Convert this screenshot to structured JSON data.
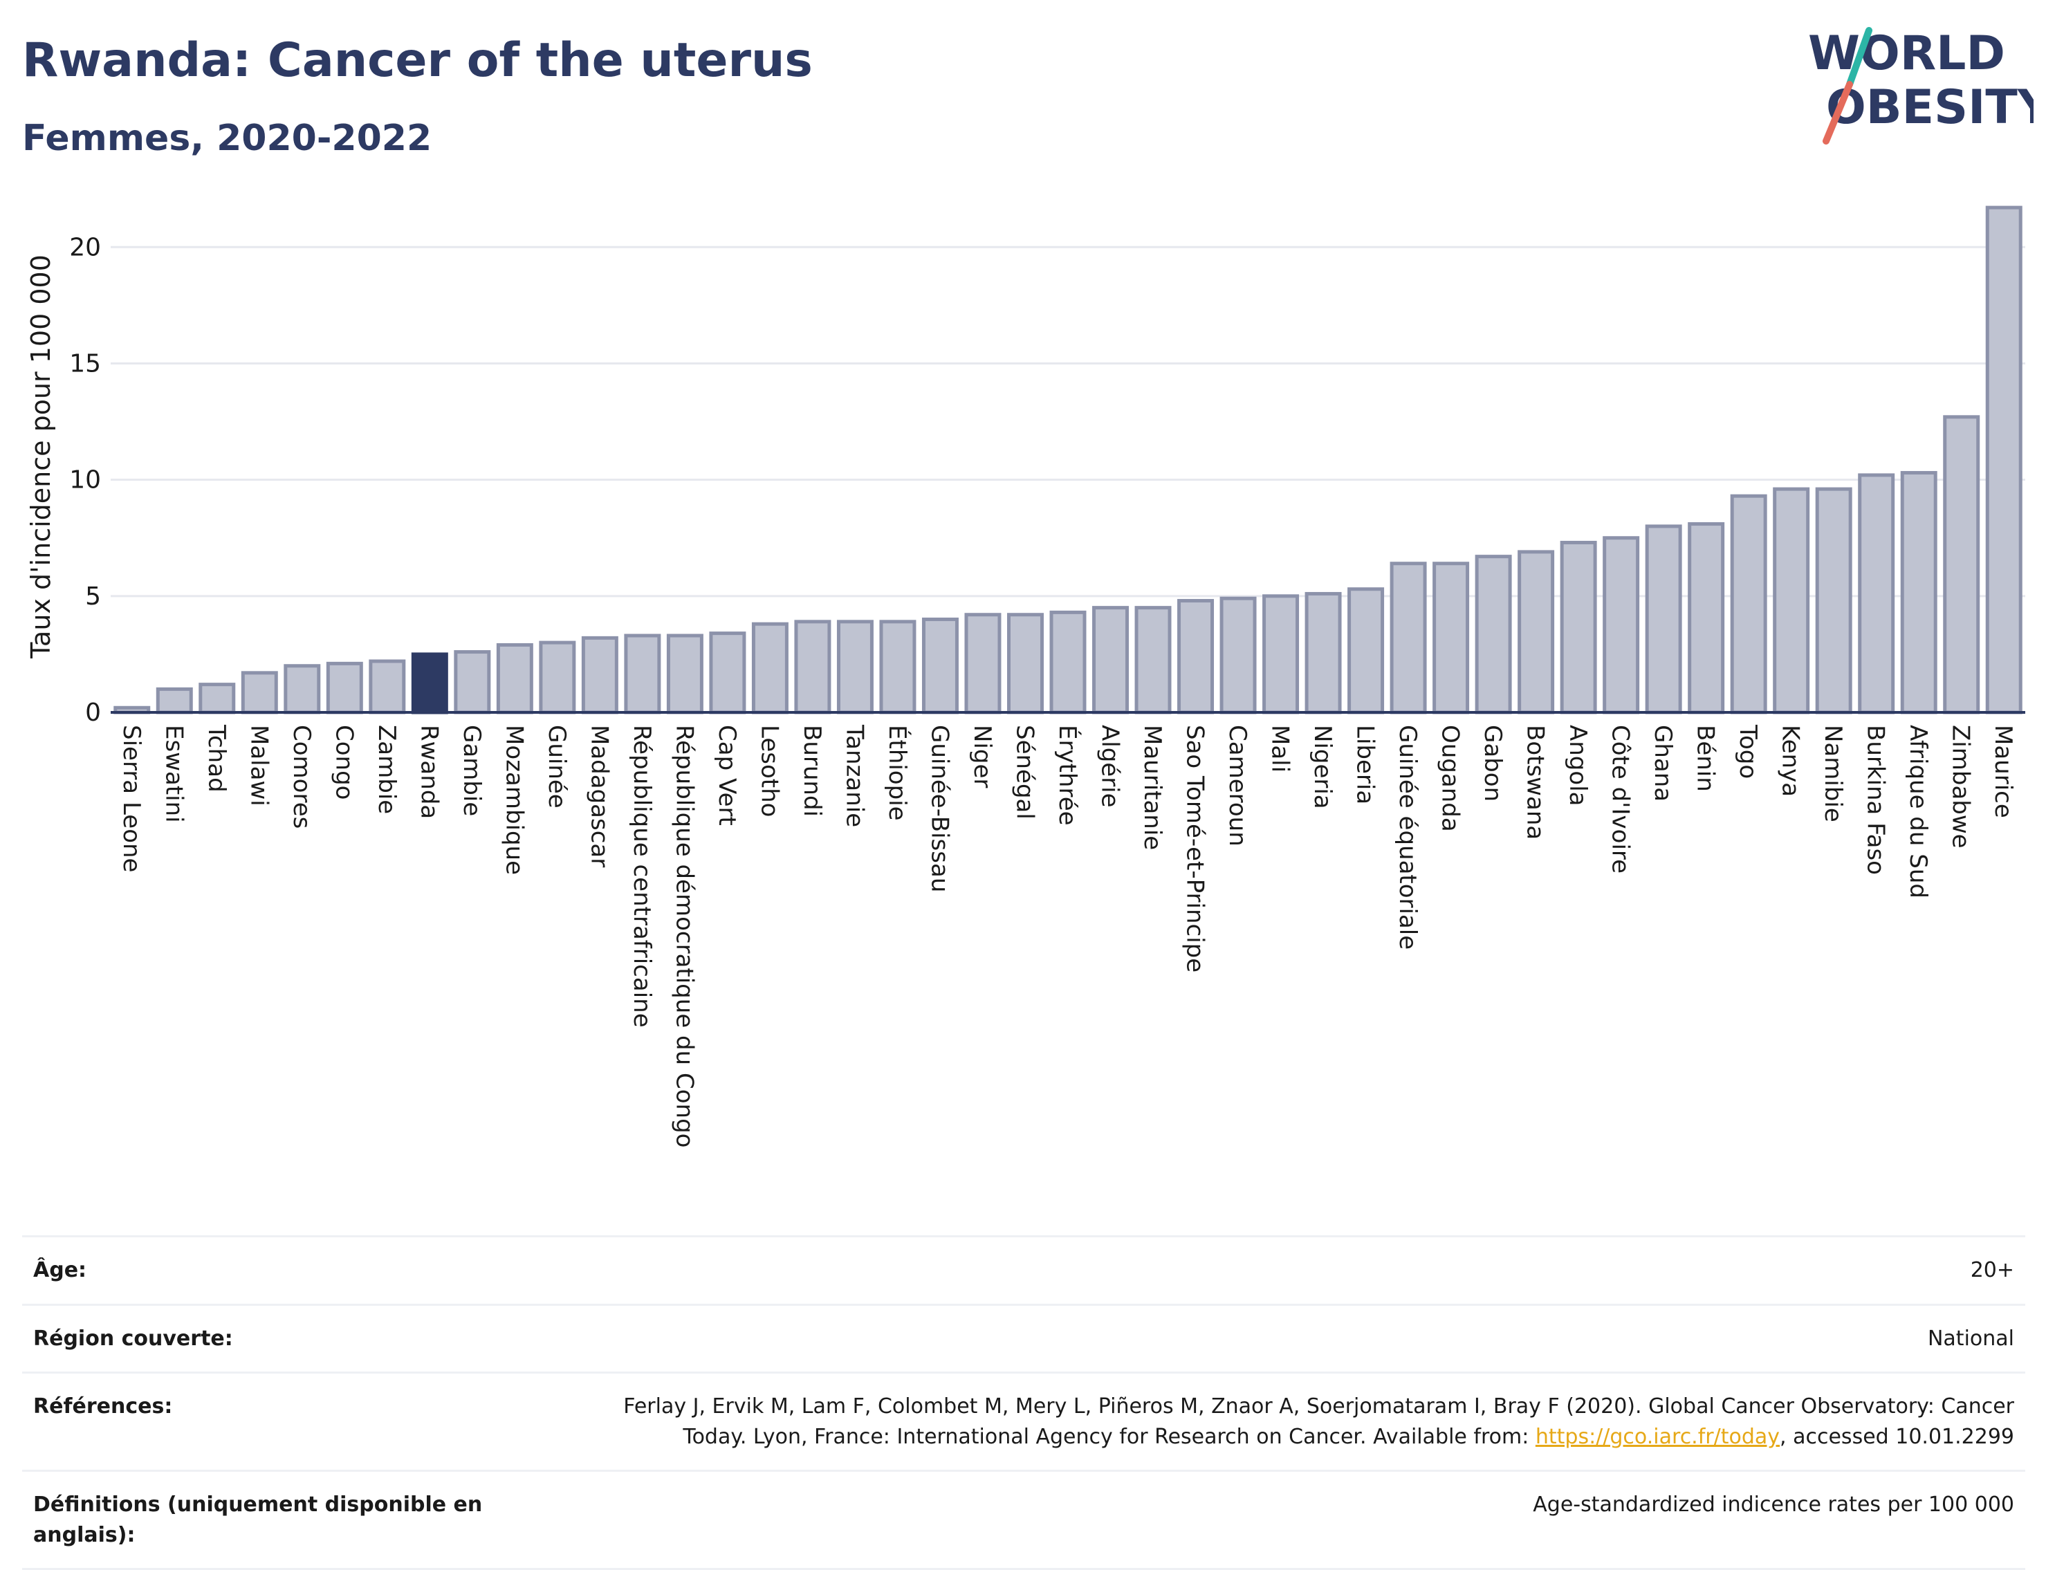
{
  "header": {
    "title": "Rwanda: Cancer of the uterus",
    "subtitle": "Femmes, 2020-2022"
  },
  "logo": {
    "line1": "WORLD",
    "line2": "OBESITY",
    "stripe_colors": [
      "#2cb5a6",
      "#e46b5b"
    ]
  },
  "colors": {
    "bar": "#bfc3d1",
    "bar_border": "#8c92aa",
    "highlight": "#2d3a63",
    "grid": "#e6e8ee",
    "text": "#2d3a63"
  },
  "chart_data": {
    "type": "bar",
    "title": "Rwanda: Cancer of the uterus",
    "subtitle": "Femmes, 2020-2022",
    "xlabel": "",
    "ylabel": "Taux d'incidence pour 100 000",
    "ylim": [
      0,
      22
    ],
    "yticks": [
      0,
      5,
      10,
      15,
      20
    ],
    "grid": true,
    "highlight": "Rwanda",
    "categories": [
      "Sierra Leone",
      "Eswatini",
      "Tchad",
      "Malawi",
      "Comores",
      "Congo",
      "Zambie",
      "Rwanda",
      "Gambie",
      "Mozambique",
      "Guinée",
      "Madagascar",
      "République centrafricaine",
      "République démocratique du Congo",
      "Cap Vert",
      "Lesotho",
      "Burundi",
      "Tanzanie",
      "Éthiopie",
      "Guinée-Bissau",
      "Niger",
      "Sénégal",
      "Érythrée",
      "Algérie",
      "Mauritanie",
      "Sao Tomé-et-Principe",
      "Cameroun",
      "Mali",
      "Nigeria",
      "Liberia",
      "Guinée équatoriale",
      "Ouganda",
      "Gabon",
      "Botswana",
      "Angola",
      "Côte d'Ivoire",
      "Ghana",
      "Bénin",
      "Togo",
      "Kenya",
      "Namibie",
      "Burkina Faso",
      "Afrique du Sud",
      "Zimbabwe",
      "Maurice"
    ],
    "values": [
      0.2,
      1.0,
      1.2,
      1.7,
      2.0,
      2.1,
      2.2,
      2.5,
      2.6,
      2.9,
      3.0,
      3.2,
      3.3,
      3.3,
      3.4,
      3.8,
      3.9,
      3.9,
      3.9,
      4.0,
      4.2,
      4.2,
      4.3,
      4.5,
      4.5,
      4.8,
      4.9,
      5.0,
      5.1,
      5.3,
      6.4,
      6.4,
      6.7,
      6.9,
      7.3,
      7.5,
      8.0,
      8.1,
      9.3,
      9.6,
      9.6,
      10.2,
      10.3,
      12.7,
      21.7
    ]
  },
  "meta": {
    "age_label": "Âge:",
    "age_value": "20+",
    "region_label": "Région couverte:",
    "region_value": "National",
    "refs_label": "Références:",
    "refs_text_1": "Ferlay J, Ervik M, Lam F, Colombet M, Mery L, Piñeros M, Znaor A, Soerjomataram I, Bray F (2020). Global Cancer Observatory: Cancer Today. Lyon, France: International Agency for Research on Cancer. Available from: ",
    "refs_link": "https://gco.iarc.fr/today",
    "refs_text_2": ", accessed 10.01.2299",
    "defs_label": "Définitions (uniquement disponible en anglais):",
    "defs_value": "Age-standardized indicence rates per 100 000"
  }
}
